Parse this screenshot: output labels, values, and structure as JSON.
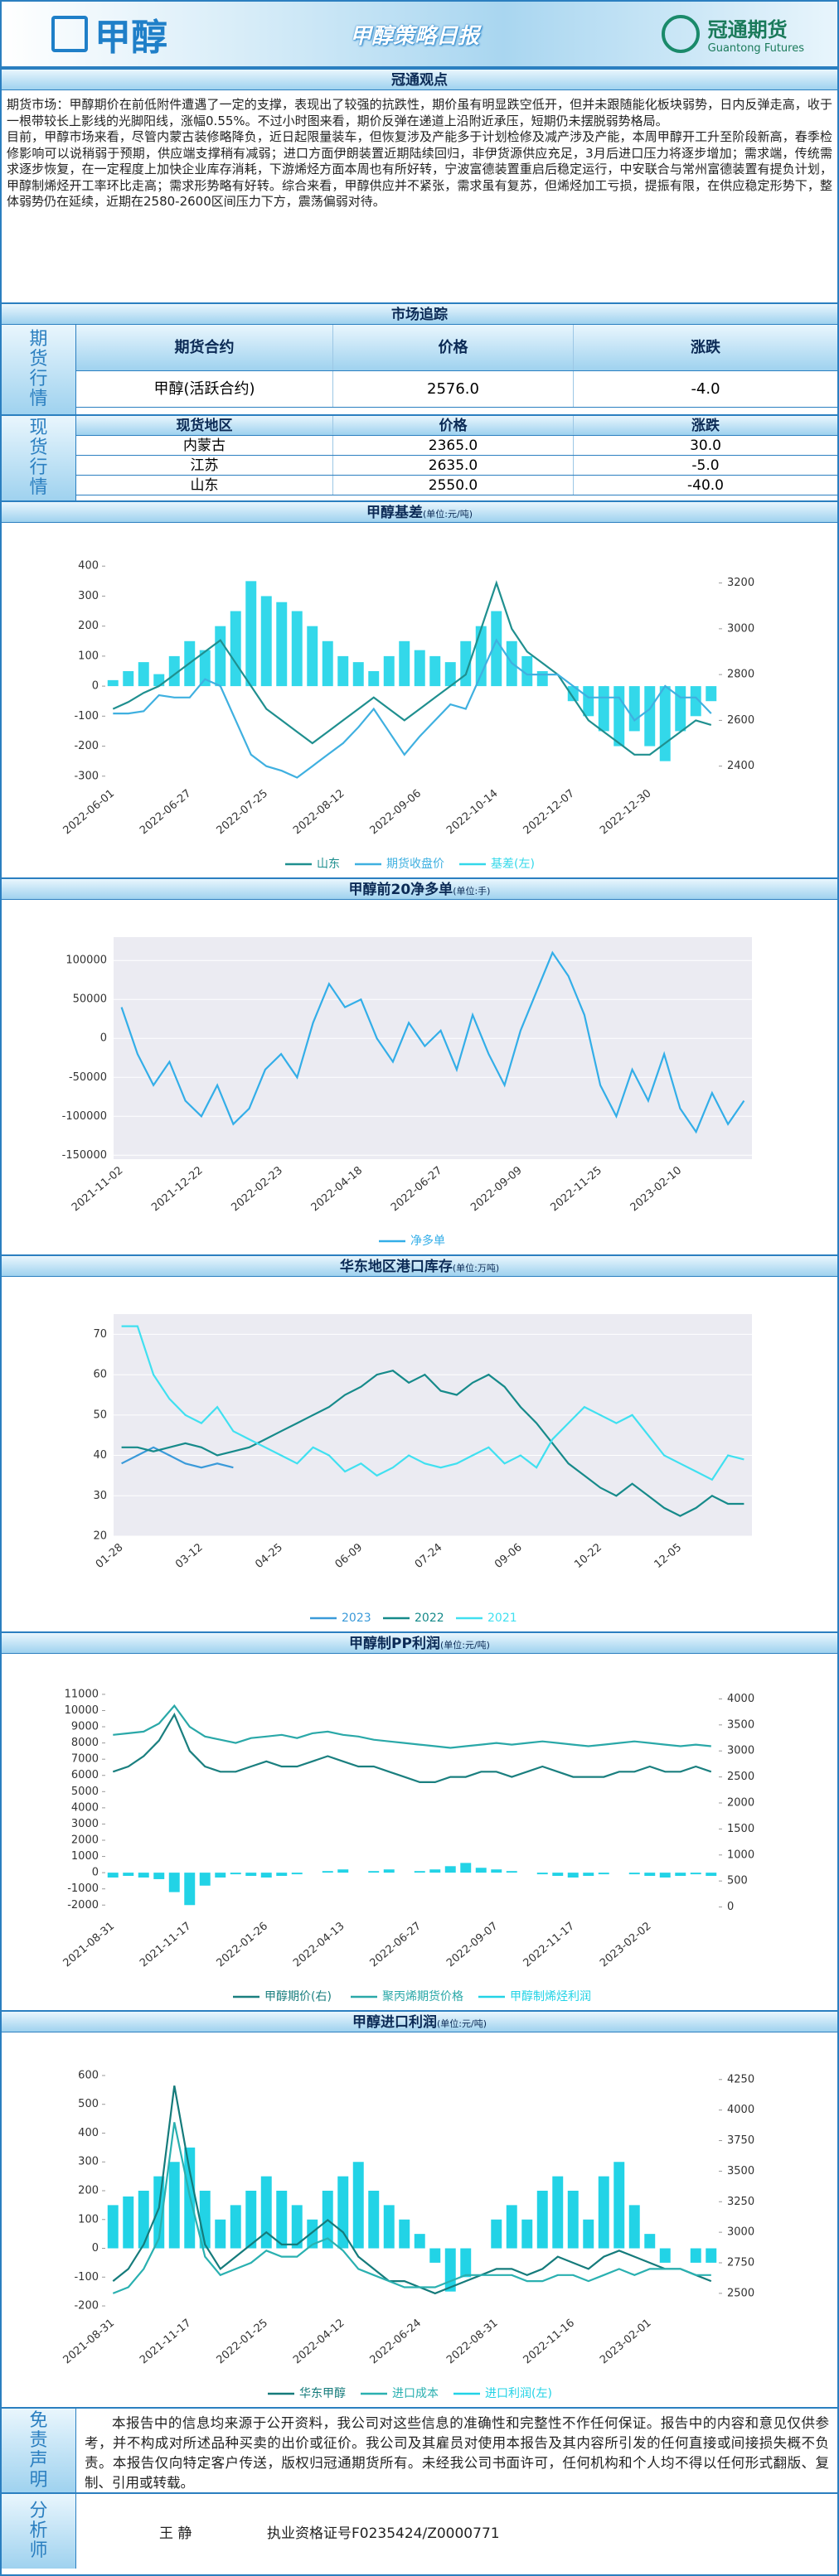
{
  "header": {
    "logo": "甲醇",
    "title": "甲醇策略日报",
    "company": "冠通期货",
    "company_en": "Guantong Futures"
  },
  "view": {
    "title": "冠通观点",
    "paragraphs": [
      "期货市场：甲醇期价在前低附件遭遇了一定的支撑，表现出了较强的抗跌性，期价虽有明显跌空低开，但并未跟随能化板块弱势，日内反弹走高，收于一根带较长上影线的光脚阳线，涨幅0.55%。不过小时图来看，期价反弹在递道上沿附近承压，短期仍未摆脱弱势格局。",
      "目前，甲醇市场来看，尽管内蒙古装修略降负，近日起限量装车，但恢复涉及产能多于计划检修及减产涉及产能，本周甲醇开工升至阶段新高，春季检修影响可以说稍弱于预期，供应端支撑稍有减弱；进口方面伊朗装置近期陆续回归，非伊货源供应充足，3月后进口压力将逐步增加；需求端，传统需求逐步恢复，在一定程度上加快企业库存消耗，下游烯烃方面本周也有所好转，宁波富德装置重启后稳定运行，中安联合与常州富德装置有提负计划，甲醇制烯烃开工率环比走高；需求形势略有好转。综合来看，甲醇供应并不紧张，需求虽有复苏，但烯烃加工亏损，提振有限，在供应稳定形势下，整体弱势仍在延续，近期在2580-2600区间压力下方，震荡偏弱对待。"
    ]
  },
  "market": {
    "title": "市场追踪",
    "futures": {
      "label": "期货行情",
      "headers": [
        "期货合约",
        "价格",
        "涨跌"
      ],
      "rows": [
        [
          "甲醇(活跃合约)",
          "2576.0",
          "-4.0"
        ]
      ]
    },
    "spot": {
      "label": "现货行情",
      "headers": [
        "现货地区",
        "价格",
        "涨跌"
      ],
      "rows": [
        [
          "内蒙古",
          "2365.0",
          "30.0"
        ],
        [
          "江苏",
          "2635.0",
          "-5.0"
        ],
        [
          "山东",
          "2550.0",
          "-40.0"
        ]
      ]
    }
  },
  "chart_data": [
    {
      "type": "combo",
      "title": "甲醇基差",
      "unit": "(单位:元/吨)",
      "grid": false,
      "categories": [
        "2022-06-01",
        null,
        null,
        null,
        null,
        "2022-06-27",
        null,
        null,
        null,
        null,
        "2022-07-25",
        null,
        null,
        null,
        null,
        "2022-08-12",
        null,
        null,
        null,
        null,
        "2022-09-06",
        null,
        null,
        null,
        null,
        "2022-10-14",
        null,
        null,
        null,
        null,
        "2022-12-07",
        null,
        null,
        null,
        null,
        "2022-12-30",
        null,
        null,
        null,
        null
      ],
      "series": [
        {
          "name": "山东",
          "type": "line",
          "axis": "y2",
          "color": "#1f8f8f",
          "values": [
            2650,
            2680,
            2720,
            2750,
            2800,
            2850,
            2900,
            2950,
            2850,
            2750,
            2650,
            2600,
            2550,
            2500,
            2550,
            2600,
            2650,
            2700,
            2650,
            2600,
            2650,
            2700,
            2750,
            2800,
            3000,
            3200,
            3000,
            2900,
            2850,
            2800,
            2700,
            2600,
            2550,
            2500,
            2450,
            2450,
            2500,
            2550,
            2600,
            2580
          ]
        },
        {
          "name": "期货收盘价",
          "type": "line",
          "axis": "y2",
          "color": "#3fb0e0",
          "values": [
            2630,
            2630,
            2640,
            2710,
            2700,
            2700,
            2780,
            2750,
            2600,
            2450,
            2400,
            2380,
            2350,
            2400,
            2450,
            2500,
            2570,
            2650,
            2550,
            2450,
            2530,
            2600,
            2670,
            2650,
            2800,
            2950,
            2850,
            2800,
            2800,
            2800,
            2750,
            2700,
            2700,
            2700,
            2600,
            2650,
            2750,
            2700,
            2700,
            2630
          ]
        },
        {
          "name": "基差(左)",
          "type": "bar",
          "color": "#33d8ea",
          "values": [
            20,
            50,
            80,
            40,
            100,
            150,
            120,
            200,
            250,
            350,
            300,
            280,
            250,
            200,
            150,
            100,
            80,
            50,
            100,
            150,
            120,
            100,
            80,
            150,
            200,
            250,
            150,
            100,
            50,
            0,
            -50,
            -100,
            -150,
            -200,
            -150,
            -200,
            -250,
            -150,
            -100,
            -50
          ]
        }
      ],
      "ylim": [
        -320,
        420
      ],
      "yticks": [
        -300,
        -200,
        -100,
        0,
        100,
        200,
        300,
        400
      ],
      "y2lim": [
        2330,
        3300
      ],
      "y2ticks": [
        2400,
        2600,
        2800,
        3000,
        3200
      ],
      "legend": "bottom"
    },
    {
      "type": "line",
      "title": "甲醇前20净多单",
      "unit": "(单位:手)",
      "grid": true,
      "categories": [
        "2021-11-02",
        null,
        null,
        null,
        null,
        "2021-12-22",
        null,
        null,
        null,
        null,
        "2022-02-23",
        null,
        null,
        null,
        null,
        "2022-04-18",
        null,
        null,
        null,
        null,
        "2022-06-27",
        null,
        null,
        null,
        null,
        "2022-09-09",
        null,
        null,
        null,
        null,
        "2022-11-25",
        null,
        null,
        null,
        null,
        "2023-02-10",
        null,
        null,
        null,
        null
      ],
      "series": [
        {
          "name": "净多单",
          "color": "#33aee8",
          "values": [
            40000,
            -20000,
            -60000,
            -30000,
            -80000,
            -100000,
            -60000,
            -110000,
            -90000,
            -40000,
            -20000,
            -50000,
            20000,
            70000,
            40000,
            50000,
            0,
            -30000,
            20000,
            -10000,
            10000,
            -40000,
            30000,
            -20000,
            -60000,
            10000,
            60000,
            110000,
            80000,
            30000,
            -60000,
            -100000,
            -40000,
            -80000,
            -20000,
            -90000,
            -120000,
            -70000,
            -110000,
            -80000
          ]
        }
      ],
      "ylim": [
        -155000,
        130000
      ],
      "yticks": [
        -150000,
        -100000,
        -50000,
        0,
        50000,
        100000
      ],
      "legend": "bottom"
    },
    {
      "type": "line",
      "title": "华东地区港口库存",
      "unit": "(单位:万吨)",
      "grid": true,
      "categories": [
        "01-28",
        null,
        null,
        null,
        null,
        "03-12",
        null,
        null,
        null,
        null,
        "04-25",
        null,
        null,
        null,
        null,
        "06-09",
        null,
        null,
        null,
        null,
        "07-24",
        null,
        null,
        null,
        null,
        "09-06",
        null,
        null,
        null,
        null,
        "10-22",
        null,
        null,
        null,
        null,
        "12-05",
        null,
        null,
        null,
        null
      ],
      "series": [
        {
          "name": "2023",
          "color": "#3a9ad9",
          "values": [
            38,
            40,
            42,
            40,
            38,
            37,
            38,
            37,
            null,
            null,
            null,
            null,
            null,
            null,
            null,
            null,
            null,
            null,
            null,
            null,
            null,
            null,
            null,
            null,
            null,
            null,
            null,
            null,
            null,
            null,
            null,
            null,
            null,
            null,
            null,
            null,
            null,
            null,
            null,
            null
          ]
        },
        {
          "name": "2022",
          "color": "#168a8a",
          "values": [
            42,
            42,
            41,
            42,
            43,
            42,
            40,
            41,
            42,
            44,
            46,
            48,
            50,
            52,
            55,
            57,
            60,
            61,
            58,
            60,
            56,
            55,
            58,
            60,
            57,
            52,
            48,
            43,
            38,
            35,
            32,
            30,
            33,
            30,
            27,
            25,
            27,
            30,
            28,
            28
          ]
        },
        {
          "name": "2021",
          "color": "#40e0f0",
          "values": [
            72,
            72,
            60,
            54,
            50,
            48,
            52,
            46,
            44,
            42,
            40,
            38,
            42,
            40,
            36,
            38,
            35,
            37,
            40,
            38,
            37,
            38,
            40,
            42,
            38,
            40,
            37,
            44,
            48,
            52,
            50,
            48,
            50,
            45,
            40,
            38,
            36,
            34,
            40,
            39
          ]
        }
      ],
      "ylim": [
        20,
        75
      ],
      "yticks": [
        20,
        30,
        40,
        50,
        60,
        70
      ],
      "legend": "bottom"
    },
    {
      "type": "combo",
      "title": "甲醇制PP利润",
      "unit": "(单位:元/吨)",
      "grid": false,
      "categories": [
        "2021-08-31",
        null,
        null,
        null,
        null,
        "2021-11-17",
        null,
        null,
        null,
        null,
        "2022-01-26",
        null,
        null,
        null,
        null,
        "2022-04-13",
        null,
        null,
        null,
        null,
        "2022-06-27",
        null,
        null,
        null,
        null,
        "2022-09-07",
        null,
        null,
        null,
        null,
        "2022-11-17",
        null,
        null,
        null,
        null,
        "2023-02-02",
        null,
        null,
        null,
        null
      ],
      "series": [
        {
          "name": "甲醇期价(右)",
          "type": "line",
          "axis": "y2",
          "color": "#1a7f7f",
          "values": [
            2600,
            2700,
            2900,
            3200,
            3700,
            3000,
            2700,
            2600,
            2600,
            2700,
            2800,
            2700,
            2700,
            2800,
            2900,
            2800,
            2700,
            2700,
            2600,
            2500,
            2400,
            2400,
            2500,
            2500,
            2600,
            2600,
            2500,
            2600,
            2700,
            2600,
            2500,
            2500,
            2500,
            2600,
            2600,
            2700,
            2600,
            2600,
            2700,
            2600
          ]
        },
        {
          "name": "聚丙烯期货价格",
          "type": "line",
          "color": "#2aa8a8",
          "values": [
            8500,
            8600,
            8700,
            9200,
            10300,
            9000,
            8400,
            8200,
            8000,
            8300,
            8400,
            8500,
            8300,
            8600,
            8700,
            8500,
            8400,
            8200,
            8100,
            8000,
            7900,
            7800,
            7700,
            7800,
            7900,
            8000,
            7900,
            8000,
            8100,
            8000,
            7900,
            7800,
            7900,
            8000,
            8100,
            8000,
            7900,
            7800,
            7900,
            7800
          ]
        },
        {
          "name": "甲醇制烯烃利润",
          "type": "bar",
          "color": "#22d3e6",
          "values": [
            -300,
            -200,
            -300,
            -400,
            -1200,
            -2000,
            -800,
            -300,
            -100,
            -200,
            -300,
            -200,
            -100,
            0,
            100,
            200,
            0,
            100,
            200,
            0,
            100,
            200,
            400,
            600,
            300,
            200,
            100,
            0,
            -100,
            -200,
            -300,
            -200,
            -100,
            0,
            -100,
            -200,
            -300,
            -200,
            -100,
            -200
          ]
        }
      ],
      "ylim": [
        -2600,
        11200
      ],
      "yticks": [
        -2000,
        -1000,
        0,
        1000,
        2000,
        3000,
        4000,
        5000,
        6000,
        7000,
        8000,
        9000,
        10000,
        11000
      ],
      "y2lim": [
        -150,
        4150
      ],
      "y2ticks": [
        0,
        500,
        1000,
        1500,
        2000,
        2500,
        3000,
        3500,
        4000
      ],
      "legend": "bottom"
    },
    {
      "type": "combo",
      "title": "甲醇进口利润",
      "unit": "(单位:元/吨)",
      "grid": false,
      "categories": [
        "2021-08-31",
        null,
        null,
        null,
        null,
        "2021-11-17",
        null,
        null,
        null,
        null,
        "2022-01-25",
        null,
        null,
        null,
        null,
        "2022-04-12",
        null,
        null,
        null,
        null,
        "2022-06-24",
        null,
        null,
        null,
        null,
        "2022-08-31",
        null,
        null,
        null,
        null,
        "2022-11-16",
        null,
        null,
        null,
        null,
        "2023-02-01",
        null,
        null,
        null,
        null
      ],
      "series": [
        {
          "name": "华东甲醇",
          "type": "line",
          "axis": "y2",
          "color": "#157b7b",
          "values": [
            2600,
            2700,
            2900,
            3200,
            4200,
            3500,
            2900,
            2700,
            2800,
            2900,
            3000,
            2900,
            2900,
            3000,
            3100,
            3000,
            2800,
            2700,
            2600,
            2600,
            2550,
            2500,
            2550,
            2600,
            2650,
            2700,
            2700,
            2650,
            2700,
            2800,
            2750,
            2700,
            2800,
            2850,
            2800,
            2750,
            2700,
            2700,
            2650,
            2600
          ]
        },
        {
          "name": "进口成本",
          "type": "line",
          "axis": "y2",
          "color": "#2ab0b0",
          "values": [
            2500,
            2550,
            2700,
            2950,
            3900,
            3300,
            2800,
            2650,
            2700,
            2750,
            2850,
            2800,
            2800,
            2900,
            2950,
            2850,
            2700,
            2650,
            2600,
            2550,
            2550,
            2550,
            2600,
            2650,
            2650,
            2650,
            2650,
            2600,
            2600,
            2650,
            2650,
            2600,
            2650,
            2700,
            2650,
            2700,
            2700,
            2700,
            2650,
            2650
          ]
        },
        {
          "name": "进口利润(左)",
          "type": "bar",
          "color": "#22d3e6",
          "values": [
            150,
            180,
            200,
            250,
            300,
            350,
            200,
            100,
            150,
            200,
            250,
            200,
            150,
            100,
            200,
            250,
            300,
            200,
            150,
            100,
            50,
            -50,
            -150,
            -100,
            0,
            100,
            150,
            100,
            200,
            250,
            200,
            100,
            250,
            300,
            150,
            50,
            -50,
            0,
            -50,
            -50
          ]
        }
      ],
      "ylim": [
        -220,
        620
      ],
      "yticks": [
        -200,
        -100,
        0,
        100,
        200,
        300,
        400,
        500,
        600
      ],
      "y2lim": [
        2350,
        4330
      ],
      "y2ticks": [
        2500,
        2750,
        3000,
        3250,
        3500,
        3750,
        4000,
        4250
      ],
      "legend": "bottom"
    }
  ],
  "disclaimer": {
    "label": "免责声明",
    "text": "本报告中的信息均来源于公开资料，我公司对这些信息的准确性和完整性不作任何保证。报告中的内容和意见仅供参考，并不构成对所述品种买卖的出价或征价。我公司及其雇员对使用本报告及其内容所引发的任何直接或间接损失概不负责。本报告仅向特定客户传送，版权归冠通期货所有。未经我公司书面许可，任何机构和个人均不得以任何形式翻版、复制、引用或转载。"
  },
  "analyst": {
    "label": "分析师",
    "name": "王 静",
    "cert": "执业资格证号F0235424/Z0000771"
  }
}
